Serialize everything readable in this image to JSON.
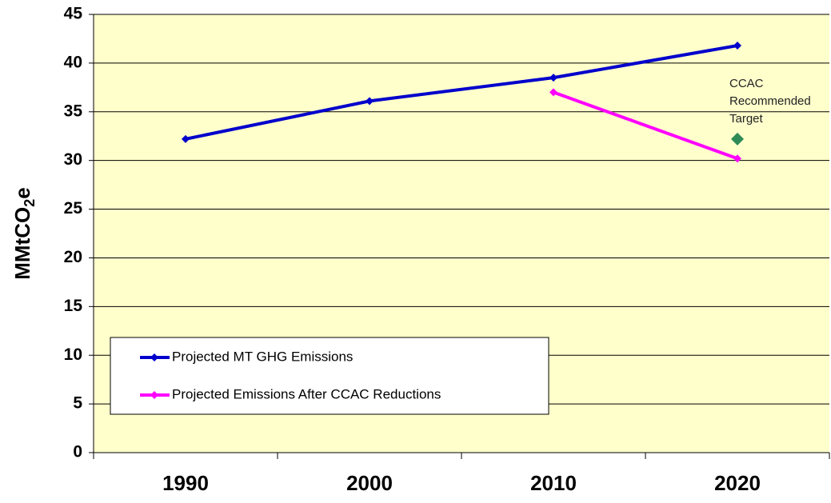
{
  "chart_data": {
    "type": "line",
    "categories": [
      "1990",
      "2000",
      "2010",
      "2020"
    ],
    "series": [
      {
        "name": "Projected MT GHG Emissions",
        "color": "#0000cc",
        "values": [
          32.2,
          36.1,
          38.5,
          41.8
        ]
      },
      {
        "name": "Projected Emissions After CCAC Reductions",
        "color": "#ff00ff",
        "values": [
          null,
          null,
          37.0,
          30.2
        ]
      },
      {
        "color": "#2e8b57",
        "marker": "diamond",
        "line": false,
        "values": [
          null,
          null,
          null,
          32.2
        ]
      }
    ],
    "annotation": [
      "CCAC",
      "Recommended",
      "Target"
    ],
    "ylabel": {
      "main": "MMtCO",
      "sub": "2",
      "tail": "e"
    },
    "ylim": [
      0,
      45
    ],
    "yticks": [
      0,
      5,
      10,
      15,
      20,
      25,
      30,
      35,
      40,
      45
    ],
    "grid": true,
    "plot_background": "#ffffcc"
  }
}
